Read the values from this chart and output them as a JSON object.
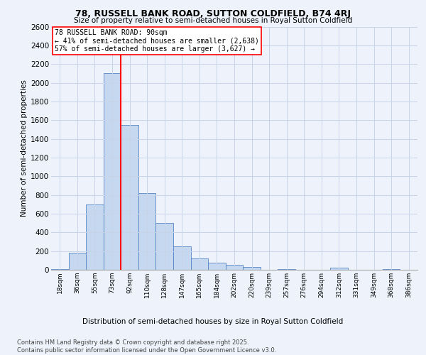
{
  "title": "78, RUSSELL BANK ROAD, SUTTON COLDFIELD, B74 4RJ",
  "subtitle": "Size of property relative to semi-detached houses in Royal Sutton Coldfield",
  "xlabel_bottom": "Distribution of semi-detached houses by size in Royal Sutton Coldfield",
  "ylabel": "Number of semi-detached properties",
  "footer_line1": "Contains HM Land Registry data © Crown copyright and database right 2025.",
  "footer_line2": "Contains public sector information licensed under the Open Government Licence v3.0.",
  "bin_labels": [
    "18sqm",
    "36sqm",
    "55sqm",
    "73sqm",
    "92sqm",
    "110sqm",
    "128sqm",
    "147sqm",
    "165sqm",
    "184sqm",
    "202sqm",
    "220sqm",
    "239sqm",
    "257sqm",
    "276sqm",
    "294sqm",
    "312sqm",
    "331sqm",
    "349sqm",
    "368sqm",
    "386sqm"
  ],
  "bar_values": [
    10,
    180,
    700,
    2100,
    1550,
    820,
    500,
    250,
    120,
    75,
    55,
    30,
    0,
    10,
    0,
    0,
    20,
    0,
    0,
    10,
    0
  ],
  "bar_color": "#c5d8f0",
  "bar_edge_color": "#5585c5",
  "grid_color": "#c8d4e8",
  "background_color": "#edf2fb",
  "vline_color": "red",
  "vline_position": 3.5,
  "annotation_title": "78 RUSSELL BANK ROAD: 90sqm",
  "annotation_line1": "← 41% of semi-detached houses are smaller (2,638)",
  "annotation_line2": "57% of semi-detached houses are larger (3,627) →",
  "annotation_box_color": "red",
  "ylim": [
    0,
    2600
  ],
  "yticks": [
    0,
    200,
    400,
    600,
    800,
    1000,
    1200,
    1400,
    1600,
    1800,
    2000,
    2200,
    2400,
    2600
  ],
  "title_fontsize": 9,
  "subtitle_fontsize": 7.5,
  "ylabel_fontsize": 7.5,
  "ytick_fontsize": 7.5,
  "xtick_fontsize": 6.5,
  "annotation_fontsize": 7,
  "footer_fontsize": 6
}
